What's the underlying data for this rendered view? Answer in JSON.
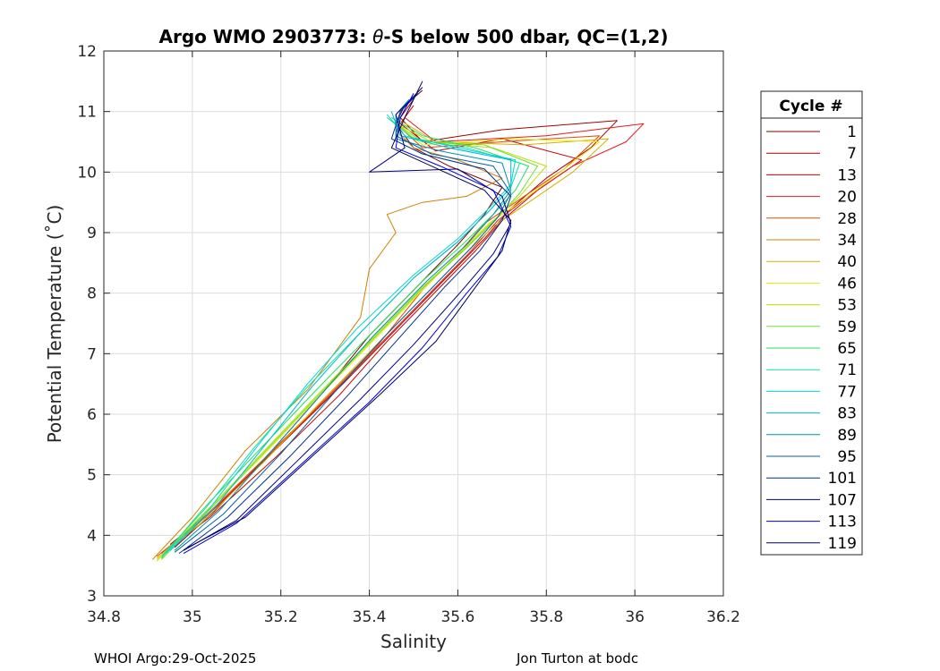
{
  "chart_data": {
    "type": "line",
    "title_prefix": "Argo WMO 2903773: ",
    "title_theta": "θ",
    "title_suffix": "-S below 500 dbar,  QC=(1,2)",
    "xlabel": "Salinity",
    "ylabel": "Potential Temperature (˚C)",
    "xlim": [
      34.8,
      36.2
    ],
    "ylim": [
      3,
      12
    ],
    "xticks": [
      "34.8",
      "35",
      "35.2",
      "35.4",
      "35.6",
      "35.8",
      "36",
      "36.2"
    ],
    "yticks": [
      "3",
      "4",
      "5",
      "6",
      "7",
      "8",
      "9",
      "10",
      "11",
      "12"
    ],
    "grid": true,
    "legend": {
      "title": "Cycle #",
      "placement": "outside-right",
      "entries": [
        {
          "label": "1",
          "color": "#7f0000"
        },
        {
          "label": "7",
          "color": "#a50000"
        },
        {
          "label": "13",
          "color": "#cc0000"
        },
        {
          "label": "20",
          "color": "#e31a1c"
        },
        {
          "label": "28",
          "color": "#e34a00"
        },
        {
          "label": "34",
          "color": "#d08000"
        },
        {
          "label": "40",
          "color": "#d4b000"
        },
        {
          "label": "46",
          "color": "#e8e800"
        },
        {
          "label": "53",
          "color": "#b8e000"
        },
        {
          "label": "59",
          "color": "#70e030"
        },
        {
          "label": "65",
          "color": "#20e060"
        },
        {
          "label": "71",
          "color": "#10e0a0"
        },
        {
          "label": "77",
          "color": "#00d8d8"
        },
        {
          "label": "83",
          "color": "#00b8d0"
        },
        {
          "label": "89",
          "color": "#0090b0"
        },
        {
          "label": "95",
          "color": "#0060a8"
        },
        {
          "label": "101",
          "color": "#003090"
        },
        {
          "label": "107",
          "color": "#000080"
        },
        {
          "label": "113",
          "color": "#0000d0"
        },
        {
          "label": "119",
          "color": "#000060"
        }
      ]
    },
    "series": [
      {
        "name": "1",
        "color": "#7f0000",
        "s": [
          34.96,
          35.05,
          35.18,
          35.3,
          35.4,
          35.52,
          35.6,
          35.66,
          35.7,
          35.58,
          35.5,
          35.46,
          35.48,
          35.52
        ],
        "t": [
          3.8,
          4.4,
          5.4,
          6.4,
          7.3,
          8.2,
          8.8,
          9.3,
          9.75,
          10.1,
          10.4,
          10.8,
          11.1,
          11.35
        ]
      },
      {
        "name": "7",
        "color": "#a50000",
        "s": [
          34.95,
          35.06,
          35.2,
          35.34,
          35.46,
          35.58,
          35.66,
          35.72,
          35.8,
          35.9,
          35.96,
          35.7,
          35.52,
          35.47,
          35.5
        ],
        "t": [
          3.85,
          4.5,
          5.5,
          6.5,
          7.4,
          8.3,
          8.9,
          9.4,
          9.9,
          10.4,
          10.85,
          10.7,
          10.5,
          10.9,
          11.2
        ]
      },
      {
        "name": "13",
        "color": "#cc0000",
        "s": [
          34.94,
          35.04,
          35.19,
          35.33,
          35.44,
          35.56,
          35.64,
          35.7,
          35.78,
          35.88,
          35.7,
          35.55,
          35.47,
          35.5
        ],
        "t": [
          3.75,
          4.3,
          5.3,
          6.3,
          7.2,
          8.1,
          8.7,
          9.2,
          9.7,
          10.2,
          10.55,
          10.35,
          10.8,
          11.1
        ]
      },
      {
        "name": "20",
        "color": "#e31a1c",
        "s": [
          34.93,
          35.03,
          35.17,
          35.31,
          35.43,
          35.55,
          35.63,
          35.69,
          35.76,
          35.86,
          35.98,
          36.02,
          35.8,
          35.55,
          35.48
        ],
        "t": [
          3.7,
          4.3,
          5.3,
          6.3,
          7.2,
          8.1,
          8.7,
          9.2,
          9.6,
          10.1,
          10.5,
          10.8,
          10.6,
          10.5,
          10.9
        ]
      },
      {
        "name": "28",
        "color": "#e34a00",
        "s": [
          34.92,
          35.02,
          35.16,
          35.3,
          35.42,
          35.52,
          35.6,
          35.66,
          35.74,
          35.84,
          35.92,
          35.7,
          35.52,
          35.46
        ],
        "t": [
          3.65,
          4.25,
          5.25,
          6.25,
          7.15,
          8.05,
          8.65,
          9.15,
          9.55,
          10.05,
          10.6,
          10.5,
          10.4,
          10.8
        ]
      },
      {
        "name": "34",
        "color": "#d08000",
        "s": [
          34.91,
          35.0,
          35.12,
          35.26,
          35.38,
          35.4,
          35.46,
          35.44,
          35.52,
          35.62,
          35.7,
          35.6,
          35.5,
          35.46
        ],
        "t": [
          3.6,
          4.3,
          5.4,
          6.4,
          7.6,
          8.4,
          9.0,
          9.3,
          9.5,
          9.6,
          9.9,
          10.2,
          10.4,
          10.7
        ]
      },
      {
        "name": "40",
        "color": "#d4b000",
        "s": [
          34.92,
          35.02,
          35.16,
          35.29,
          35.41,
          35.53,
          35.61,
          35.68,
          35.76,
          35.86,
          35.94,
          35.75,
          35.55,
          35.47
        ],
        "t": [
          3.62,
          4.2,
          5.2,
          6.2,
          7.1,
          8.0,
          8.6,
          9.1,
          9.5,
          10.0,
          10.55,
          10.45,
          10.5,
          10.85
        ]
      },
      {
        "name": "46",
        "color": "#e8e800",
        "s": [
          34.92,
          35.01,
          35.15,
          35.28,
          35.4,
          35.52,
          35.6,
          35.67,
          35.75,
          35.84,
          35.92,
          35.72,
          35.52,
          35.46
        ],
        "t": [
          3.6,
          4.25,
          5.25,
          6.25,
          7.15,
          8.05,
          8.65,
          9.15,
          9.55,
          10.05,
          10.5,
          10.55,
          10.45,
          10.8
        ]
      },
      {
        "name": "53",
        "color": "#b8e000",
        "s": [
          34.92,
          35.02,
          35.15,
          35.28,
          35.4,
          35.52,
          35.61,
          35.68,
          35.74,
          35.8,
          35.68,
          35.54,
          35.46
        ],
        "t": [
          3.58,
          4.3,
          5.3,
          6.3,
          7.2,
          8.1,
          8.7,
          9.2,
          9.6,
          10.1,
          10.4,
          10.5,
          10.8
        ]
      },
      {
        "name": "59",
        "color": "#70e030",
        "s": [
          34.93,
          35.03,
          35.16,
          35.29,
          35.41,
          35.53,
          35.62,
          35.69,
          35.74,
          35.78,
          35.66,
          35.52,
          35.45
        ],
        "t": [
          3.6,
          4.35,
          5.35,
          6.35,
          7.25,
          8.15,
          8.75,
          9.25,
          9.65,
          10.1,
          10.45,
          10.5,
          10.85
        ]
      },
      {
        "name": "65",
        "color": "#20e060",
        "s": [
          34.93,
          35.02,
          35.15,
          35.28,
          35.4,
          35.52,
          35.61,
          35.68,
          35.73,
          35.76,
          35.64,
          35.52,
          35.45
        ],
        "t": [
          3.62,
          4.4,
          5.4,
          6.4,
          7.3,
          8.2,
          8.8,
          9.3,
          9.7,
          10.1,
          10.4,
          10.6,
          10.9
        ]
      },
      {
        "name": "71",
        "color": "#10e0a0",
        "s": [
          34.93,
          35.03,
          35.14,
          35.26,
          35.38,
          35.5,
          35.6,
          35.67,
          35.72,
          35.74,
          35.62,
          35.5,
          35.44
        ],
        "t": [
          3.65,
          4.45,
          5.45,
          6.45,
          7.35,
          8.25,
          8.85,
          9.35,
          9.75,
          10.15,
          10.4,
          10.55,
          10.9
        ]
      },
      {
        "name": "77",
        "color": "#00d8d8",
        "s": [
          34.94,
          35.04,
          35.15,
          35.26,
          35.37,
          35.5,
          35.6,
          35.67,
          35.72,
          35.73,
          35.6,
          35.48,
          35.44
        ],
        "t": [
          3.7,
          4.45,
          5.5,
          6.5,
          7.4,
          8.3,
          8.9,
          9.4,
          9.8,
          10.2,
          10.4,
          10.6,
          10.95
        ]
      },
      {
        "name": "83",
        "color": "#00b8d0",
        "s": [
          34.95,
          35.05,
          35.16,
          35.27,
          35.38,
          35.5,
          35.6,
          35.67,
          35.72,
          35.72,
          35.58,
          35.47,
          35.45
        ],
        "t": [
          3.75,
          4.45,
          5.45,
          6.45,
          7.35,
          8.25,
          8.85,
          9.35,
          9.75,
          10.2,
          10.4,
          10.6,
          11.0
        ]
      },
      {
        "name": "89",
        "color": "#0090b0",
        "s": [
          34.96,
          35.06,
          35.18,
          35.3,
          35.41,
          35.53,
          35.62,
          35.68,
          35.72,
          35.7,
          35.56,
          35.46,
          35.46,
          35.49
        ],
        "t": [
          3.75,
          4.4,
          5.4,
          6.4,
          7.3,
          8.2,
          8.8,
          9.3,
          9.7,
          10.15,
          10.35,
          10.55,
          10.95,
          11.2
        ]
      },
      {
        "name": "95",
        "color": "#0060a8",
        "s": [
          34.96,
          35.07,
          35.2,
          35.32,
          35.43,
          35.55,
          35.63,
          35.69,
          35.72,
          35.68,
          35.54,
          35.46,
          35.47,
          35.5
        ],
        "t": [
          3.72,
          4.35,
          5.35,
          6.35,
          7.25,
          8.15,
          8.75,
          9.25,
          9.65,
          10.1,
          10.3,
          10.6,
          11.0,
          11.25
        ]
      },
      {
        "name": "101",
        "color": "#003090",
        "s": [
          34.97,
          35.08,
          35.22,
          35.35,
          35.46,
          35.57,
          35.65,
          35.7,
          35.72,
          35.66,
          35.52,
          35.45,
          35.47,
          35.51
        ],
        "t": [
          3.7,
          4.3,
          5.3,
          6.3,
          7.2,
          8.1,
          8.7,
          9.2,
          9.6,
          10.05,
          10.3,
          10.55,
          11.0,
          11.3
        ]
      },
      {
        "name": "107",
        "color": "#000080",
        "s": [
          34.98,
          35.1,
          35.24,
          35.38,
          35.5,
          35.61,
          35.68,
          35.72,
          35.7,
          35.6,
          35.4,
          35.48,
          35.46,
          35.52
        ],
        "t": [
          3.75,
          4.25,
          5.25,
          6.25,
          7.15,
          8.05,
          8.65,
          9.15,
          9.6,
          10.05,
          10.0,
          10.4,
          10.95,
          11.4
        ]
      },
      {
        "name": "113",
        "color": "#0000d0",
        "s": [
          34.98,
          35.1,
          35.25,
          35.4,
          35.52,
          35.62,
          35.69,
          35.72,
          35.68,
          35.56,
          35.46,
          35.47,
          35.5
        ],
        "t": [
          3.7,
          4.2,
          5.2,
          6.2,
          7.1,
          8.0,
          8.6,
          9.1,
          9.7,
          10.1,
          10.4,
          10.9,
          11.3
        ]
      },
      {
        "name": "119",
        "color": "#000060",
        "s": [
          34.99,
          35.12,
          35.27,
          35.42,
          35.55,
          35.64,
          35.7,
          35.72,
          35.66,
          35.54,
          35.45,
          35.48,
          35.52
        ],
        "t": [
          3.8,
          4.3,
          5.3,
          6.3,
          7.2,
          8.1,
          8.7,
          9.2,
          9.7,
          10.1,
          10.4,
          10.9,
          11.5
        ]
      }
    ]
  },
  "footer": {
    "left": "WHOI Argo:29-Oct-2025",
    "right": "Jon Turton at bodc"
  }
}
